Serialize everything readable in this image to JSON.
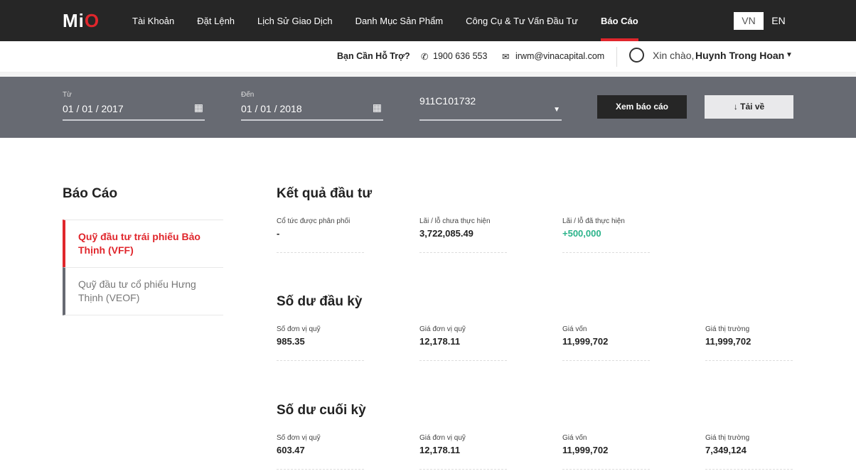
{
  "header": {
    "logo": "MiO",
    "nav": [
      "Tài Khoản",
      "Đặt Lệnh",
      "Lịch Sử Giao Dịch",
      "Danh Mục Sản Phẩm",
      "Công Cụ & Tư Vấn Đầu Tư",
      "Báo Cáo"
    ],
    "active": "Báo Cáo",
    "lang_vn": "VN",
    "lang_en": "EN"
  },
  "subbar": {
    "help": "Bạn Cần Hỗ Trợ?",
    "phone": "1900 636 553",
    "email": "irwm@vinacapital.com",
    "greeting": "Xin chào,",
    "user": "Huynh Trong Hoan"
  },
  "filter": {
    "from_label": "Từ",
    "from": "01 / 01 / 2017",
    "to_label": "Đến",
    "to": "01 / 01 / 2018",
    "account": "911C101732",
    "view_btn": "Xem báo cáo",
    "download_btn": "Tải về"
  },
  "sidebar": {
    "title": "Báo Cáo",
    "items": [
      {
        "label": "Quỹ đầu tư trái phiếu Bảo Thịnh (VFF)"
      },
      {
        "label": "Quỹ đầu tư cổ phiếu Hưng Thịnh (VEOF)"
      }
    ]
  },
  "sections": [
    {
      "title": "Kết quả đầu tư",
      "cells": [
        {
          "label": "Cổ tức được phân phối",
          "value": "-"
        },
        {
          "label": "Lãi / lỗ chưa thực hiện",
          "value": "3,722,085.49"
        },
        {
          "label": "Lãi / lỗ đã thực hiện",
          "value": "+500,000"
        }
      ]
    },
    {
      "title": "Số dư đầu kỳ",
      "cells": [
        {
          "label": "Số đơn vị quỹ",
          "value": "985.35"
        },
        {
          "label": "Giá đơn vị quỹ",
          "value": "12,178.11"
        },
        {
          "label": "Giá vốn",
          "value": "11,999,702"
        },
        {
          "label": "Giá thị trường",
          "value": "11,999,702"
        }
      ]
    },
    {
      "title": "Số dư cuối kỳ",
      "cells": [
        {
          "label": "Số đơn vị quỹ",
          "value": "603.47"
        },
        {
          "label": "Giá đơn vị quỹ",
          "value": "12,178.11"
        },
        {
          "label": "Giá vốn",
          "value": "11,999,702"
        },
        {
          "label": "Giá thị trường",
          "value": "7,349,124"
        }
      ]
    }
  ],
  "colors": {
    "accent": "#e0262c",
    "positive": "#2bb38a"
  }
}
